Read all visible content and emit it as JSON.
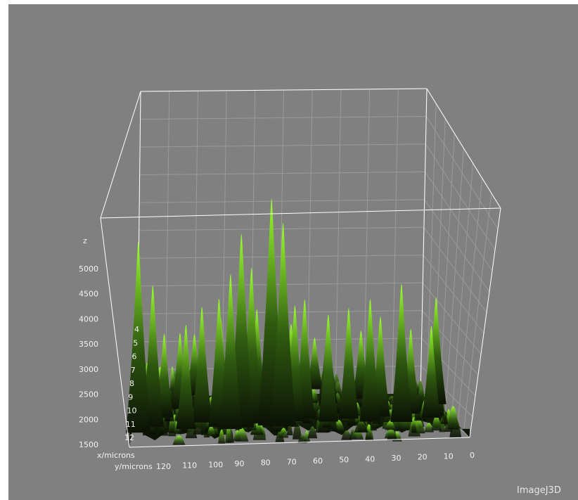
{
  "colors": {
    "background": "#808080",
    "frame": "#ffffff",
    "grid": "#9a9a9a",
    "surface_low": "#0c1206",
    "surface_high": "#8cff2a",
    "text": "#f2f2f2"
  },
  "watermark": "ImageJ3D",
  "chart_data": {
    "type": "surface",
    "axes": {
      "z": {
        "label": "z",
        "ticks": [
          "5000",
          "4500",
          "4000",
          "3500",
          "3000",
          "2500",
          "2000",
          "1500"
        ],
        "range": [
          1500,
          5000
        ]
      },
      "x": {
        "label": "x/microns",
        "ticks": [
          "4",
          "5",
          "6",
          "7",
          "8",
          "9",
          "10",
          "11",
          "12"
        ],
        "range": [
          40,
          120
        ]
      },
      "y": {
        "label": "y/microns",
        "ticks": [
          "120",
          "110",
          "100",
          "90",
          "80",
          "70",
          "60",
          "50",
          "40",
          "30",
          "20",
          "10",
          "0"
        ],
        "range": [
          120,
          0
        ]
      }
    },
    "grid": true,
    "baseline_z": 1500,
    "peaks": [
      {
        "y": 117,
        "x": 46,
        "z": 5300
      },
      {
        "y": 112,
        "x": 55,
        "z": 4400
      },
      {
        "y": 100,
        "x": 50,
        "z": 3600
      },
      {
        "y": 94,
        "x": 60,
        "z": 3900
      },
      {
        "y": 88,
        "x": 52,
        "z": 4100
      },
      {
        "y": 84,
        "x": 48,
        "z": 4600
      },
      {
        "y": 80,
        "x": 50,
        "z": 5400
      },
      {
        "y": 76,
        "x": 56,
        "z": 4700
      },
      {
        "y": 69,
        "x": 52,
        "z": 6100
      },
      {
        "y": 65,
        "x": 50,
        "z": 5600
      },
      {
        "y": 60,
        "x": 58,
        "z": 3900
      },
      {
        "y": 56,
        "x": 62,
        "z": 4000
      },
      {
        "y": 48,
        "x": 56,
        "z": 3700
      },
      {
        "y": 40,
        "x": 60,
        "z": 3800
      },
      {
        "y": 33,
        "x": 54,
        "z": 4000
      },
      {
        "y": 28,
        "x": 62,
        "z": 3600
      },
      {
        "y": 22,
        "x": 52,
        "z": 4300
      },
      {
        "y": 16,
        "x": 66,
        "z": 3300
      },
      {
        "y": 10,
        "x": 58,
        "z": 3400
      },
      {
        "y": 3,
        "x": 82,
        "z": 3900
      },
      {
        "y": 102,
        "x": 84,
        "z": 3200
      },
      {
        "y": 86,
        "x": 90,
        "z": 3500
      },
      {
        "y": 72,
        "x": 86,
        "z": 3700
      },
      {
        "y": 58,
        "x": 92,
        "z": 3300
      },
      {
        "y": 44,
        "x": 88,
        "z": 3400
      },
      {
        "y": 30,
        "x": 94,
        "z": 3100
      },
      {
        "y": 96,
        "x": 104,
        "z": 3000
      },
      {
        "y": 78,
        "x": 110,
        "z": 2900
      },
      {
        "y": 62,
        "x": 106,
        "z": 3100
      },
      {
        "y": 46,
        "x": 112,
        "z": 2800
      },
      {
        "y": 108,
        "x": 70,
        "z": 3300
      },
      {
        "y": 118,
        "x": 100,
        "z": 2700
      }
    ]
  }
}
